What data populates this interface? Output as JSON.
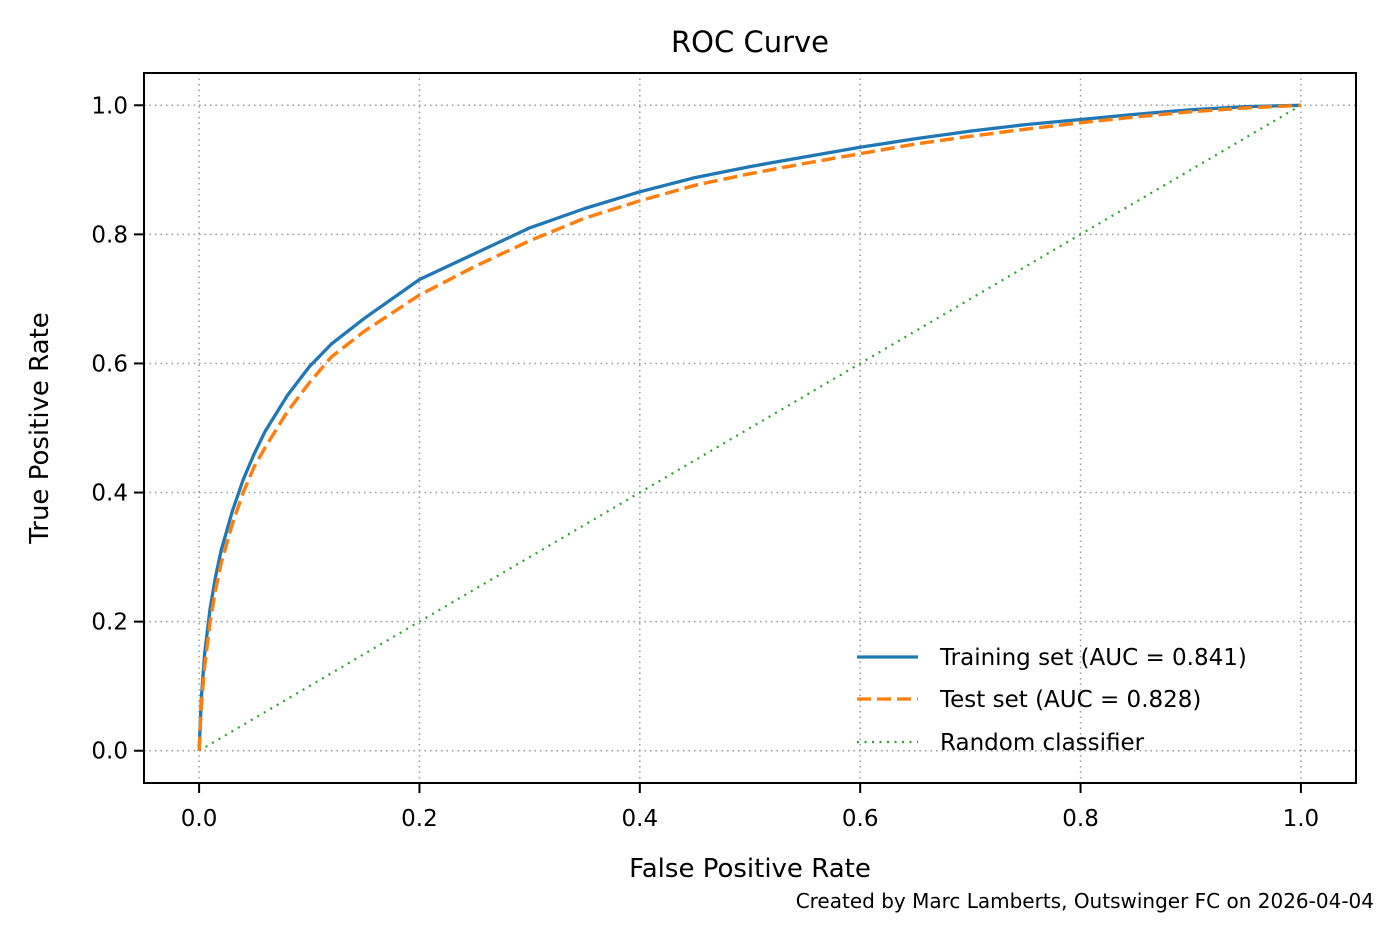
{
  "chart_data": {
    "type": "line",
    "title": "ROC Curve",
    "xlabel": "False Positive Rate",
    "ylabel": "True Positive Rate",
    "xlim": [
      -0.05,
      1.05
    ],
    "ylim": [
      -0.05,
      1.05
    ],
    "xticks": [
      0.0,
      0.2,
      0.4,
      0.6,
      0.8,
      1.0
    ],
    "yticks": [
      0.0,
      0.2,
      0.4,
      0.6,
      0.8,
      1.0
    ],
    "xtick_labels": [
      "0.0",
      "0.2",
      "0.4",
      "0.6",
      "0.8",
      "1.0"
    ],
    "ytick_labels": [
      "0.0",
      "0.2",
      "0.4",
      "0.6",
      "0.8",
      "1.0"
    ],
    "grid": true,
    "grid_style": "dotted",
    "legend_position": "lower-right",
    "series": [
      {
        "name": "Training set (AUC = 0.841)",
        "style": "solid",
        "color": "#1f77b4",
        "x": [
          0.0,
          0.002,
          0.005,
          0.01,
          0.015,
          0.02,
          0.03,
          0.04,
          0.05,
          0.06,
          0.08,
          0.1,
          0.12,
          0.15,
          0.2,
          0.25,
          0.3,
          0.35,
          0.4,
          0.45,
          0.5,
          0.55,
          0.6,
          0.65,
          0.7,
          0.75,
          0.8,
          0.85,
          0.9,
          0.95,
          1.0
        ],
        "y": [
          0.0,
          0.08,
          0.15,
          0.22,
          0.27,
          0.31,
          0.37,
          0.42,
          0.46,
          0.495,
          0.55,
          0.595,
          0.63,
          0.67,
          0.73,
          0.77,
          0.81,
          0.84,
          0.866,
          0.888,
          0.905,
          0.92,
          0.935,
          0.948,
          0.96,
          0.97,
          0.978,
          0.986,
          0.993,
          0.998,
          1.0
        ]
      },
      {
        "name": "Test set (AUC = 0.828)",
        "style": "dashed",
        "color": "#ff7f0e",
        "x": [
          0.0,
          0.002,
          0.005,
          0.01,
          0.015,
          0.02,
          0.03,
          0.04,
          0.05,
          0.06,
          0.08,
          0.1,
          0.12,
          0.15,
          0.2,
          0.25,
          0.3,
          0.35,
          0.4,
          0.45,
          0.5,
          0.55,
          0.6,
          0.65,
          0.7,
          0.75,
          0.8,
          0.85,
          0.9,
          0.95,
          1.0
        ],
        "y": [
          0.0,
          0.07,
          0.13,
          0.2,
          0.25,
          0.29,
          0.35,
          0.4,
          0.44,
          0.47,
          0.525,
          0.57,
          0.61,
          0.65,
          0.706,
          0.75,
          0.79,
          0.825,
          0.852,
          0.876,
          0.894,
          0.91,
          0.925,
          0.94,
          0.952,
          0.963,
          0.973,
          0.982,
          0.99,
          0.996,
          1.0
        ]
      },
      {
        "name": "Random classifier",
        "style": "dotted",
        "color": "#2ca02c",
        "x": [
          0.0,
          1.0
        ],
        "y": [
          0.0,
          1.0
        ]
      }
    ],
    "annotation": "Created by Marc Lamberts, Outswinger FC on 2026-04-04"
  }
}
